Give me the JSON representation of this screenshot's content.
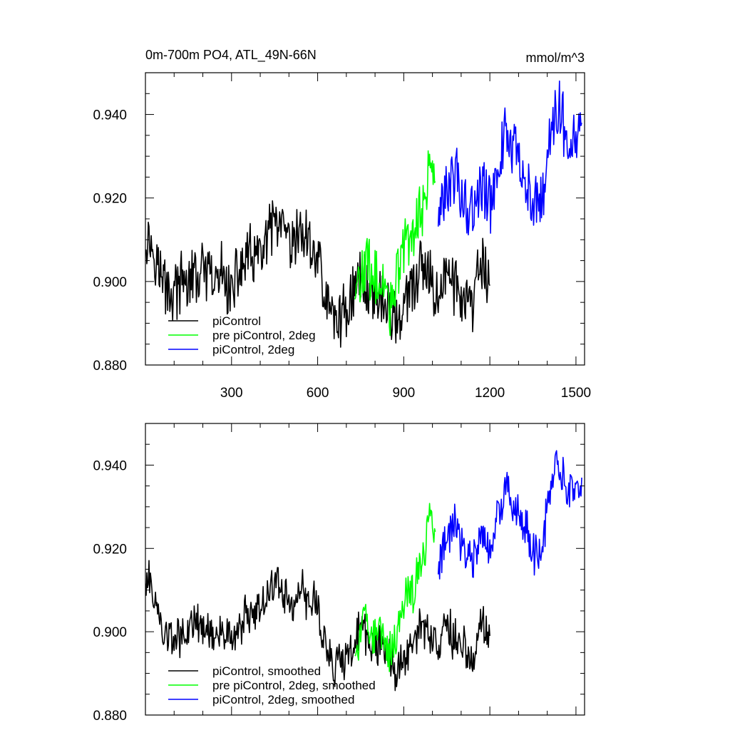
{
  "chart_data": [
    {
      "type": "line",
      "title": "0m-700m PO4, ATL_49N-66N",
      "units": "mmol/m^3",
      "xlim": [
        0,
        1530
      ],
      "ylim": [
        0.88,
        0.95
      ],
      "xticks": [
        300,
        600,
        900,
        1200,
        1500
      ],
      "xtick_labels": [
        "300",
        "600",
        "900",
        "1200",
        "1500"
      ],
      "yticks": [
        0.88,
        0.9,
        0.92,
        0.94
      ],
      "ytick_labels": [
        "0.880",
        "0.900",
        "0.920",
        "0.940"
      ],
      "grid": false,
      "legend_position": "bottom-left",
      "series": [
        {
          "name": "piControl",
          "color": "#000000",
          "x": [
            0,
            30,
            60,
            90,
            120,
            150,
            180,
            210,
            240,
            270,
            300,
            330,
            360,
            390,
            420,
            450,
            480,
            510,
            540,
            570,
            600,
            630,
            660,
            690,
            720,
            750,
            780,
            810,
            840,
            870,
            900,
            930,
            960,
            990,
            1020,
            1050,
            1080,
            1110,
            1140,
            1170,
            1200
          ],
          "y": [
            0.912,
            0.908,
            0.9,
            0.897,
            0.899,
            0.9,
            0.901,
            0.902,
            0.899,
            0.902,
            0.897,
            0.903,
            0.906,
            0.905,
            0.909,
            0.914,
            0.911,
            0.907,
            0.912,
            0.909,
            0.906,
            0.895,
            0.891,
            0.892,
            0.897,
            0.901,
            0.898,
            0.897,
            0.894,
            0.891,
            0.893,
            0.898,
            0.903,
            0.9,
            0.897,
            0.902,
            0.899,
            0.896,
            0.893,
            0.905,
            0.899
          ]
        },
        {
          "name": "pre piControl, 2deg",
          "color": "#00ff00",
          "x": [
            730,
            750,
            770,
            790,
            810,
            830,
            850,
            870,
            890,
            910,
            930,
            950,
            970,
            990,
            1010
          ],
          "y": [
            0.897,
            0.9,
            0.905,
            0.899,
            0.902,
            0.897,
            0.895,
            0.899,
            0.906,
            0.91,
            0.909,
            0.916,
            0.918,
            0.928,
            0.924
          ]
        },
        {
          "name": "piControl, 2deg",
          "color": "#0000ff",
          "x": [
            1020,
            1050,
            1080,
            1110,
            1140,
            1170,
            1200,
            1230,
            1260,
            1290,
            1320,
            1350,
            1380,
            1410,
            1440,
            1470,
            1500,
            1520
          ],
          "y": [
            0.915,
            0.921,
            0.926,
            0.92,
            0.917,
            0.922,
            0.919,
            0.929,
            0.936,
            0.93,
            0.926,
            0.919,
            0.92,
            0.935,
            0.942,
            0.936,
            0.934,
            0.938
          ]
        }
      ]
    },
    {
      "type": "line",
      "xlim": [
        0,
        1530
      ],
      "ylim": [
        0.88,
        0.95
      ],
      "xticks": [
        300,
        600,
        900,
        1200,
        1500
      ],
      "yticks": [
        0.88,
        0.9,
        0.92,
        0.94
      ],
      "ytick_labels": [
        "0.880",
        "0.900",
        "0.920",
        "0.940"
      ],
      "grid": false,
      "legend_position": "bottom-left",
      "series": [
        {
          "name": "piControl, smoothed",
          "color": "#000000",
          "x": [
            0,
            30,
            60,
            90,
            120,
            150,
            180,
            210,
            240,
            270,
            300,
            330,
            360,
            390,
            420,
            450,
            480,
            510,
            540,
            570,
            600,
            630,
            660,
            690,
            720,
            750,
            780,
            810,
            840,
            870,
            900,
            930,
            960,
            990,
            1020,
            1050,
            1080,
            1110,
            1140,
            1170,
            1200
          ],
          "y": [
            0.913,
            0.909,
            0.9,
            0.898,
            0.899,
            0.9,
            0.902,
            0.901,
            0.899,
            0.901,
            0.897,
            0.902,
            0.905,
            0.905,
            0.908,
            0.912,
            0.91,
            0.906,
            0.91,
            0.908,
            0.906,
            0.896,
            0.892,
            0.893,
            0.896,
            0.9,
            0.898,
            0.897,
            0.894,
            0.891,
            0.893,
            0.897,
            0.902,
            0.9,
            0.897,
            0.901,
            0.898,
            0.896,
            0.894,
            0.904,
            0.899
          ]
        },
        {
          "name": "pre piControl, 2deg, smoothed",
          "color": "#00ff00",
          "x": [
            730,
            750,
            770,
            790,
            810,
            830,
            850,
            870,
            890,
            910,
            930,
            950,
            970,
            990,
            1010
          ],
          "y": [
            0.896,
            0.899,
            0.904,
            0.899,
            0.902,
            0.897,
            0.895,
            0.898,
            0.905,
            0.909,
            0.909,
            0.915,
            0.918,
            0.927,
            0.924
          ]
        },
        {
          "name": "piControl, 2deg, smoothed",
          "color": "#0000ff",
          "x": [
            1020,
            1050,
            1080,
            1110,
            1140,
            1170,
            1200,
            1230,
            1260,
            1290,
            1320,
            1350,
            1380,
            1410,
            1440,
            1470,
            1500,
            1520
          ],
          "y": [
            0.916,
            0.921,
            0.926,
            0.919,
            0.917,
            0.922,
            0.919,
            0.928,
            0.935,
            0.93,
            0.926,
            0.919,
            0.92,
            0.934,
            0.94,
            0.935,
            0.933,
            0.937
          ]
        }
      ]
    }
  ]
}
